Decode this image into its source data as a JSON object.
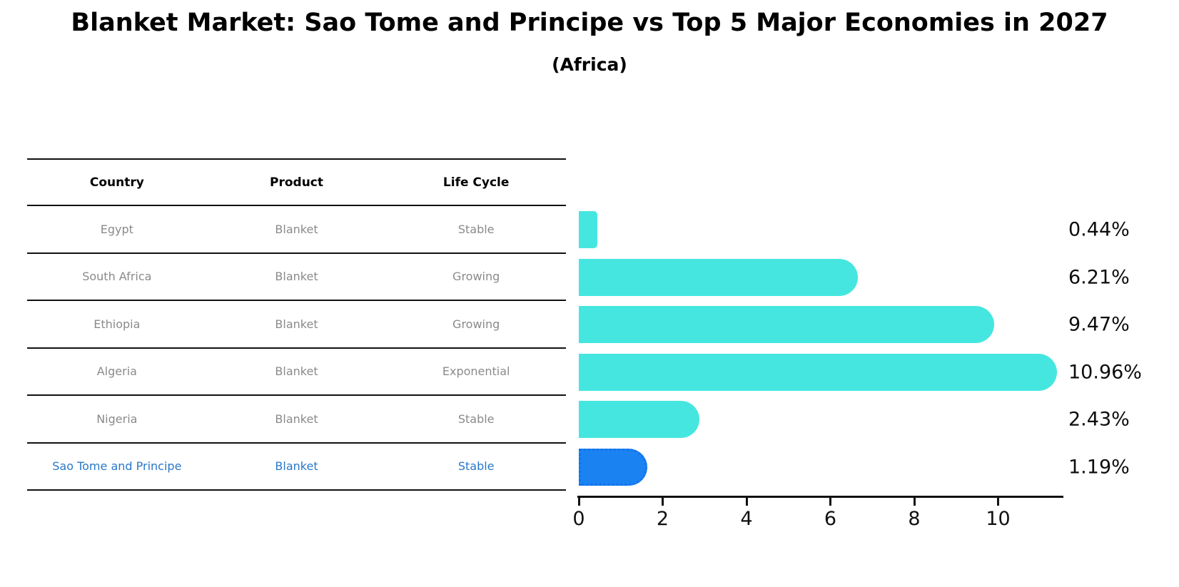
{
  "header": {
    "title": "Blanket Market: Sao Tome and Principe vs Top 5 Major Economies in 2027",
    "subtitle": "(Africa)"
  },
  "table": {
    "columns": [
      "Country",
      "Product",
      "Life Cycle"
    ]
  },
  "chart_data": {
    "type": "bar",
    "orientation": "horizontal",
    "title": "Blanket Market: Sao Tome and Principe vs Top 5 Major Economies in 2027",
    "subtitle": "(Africa)",
    "xlabel": "",
    "ylabel": "",
    "xlim": [
      0,
      11.56
    ],
    "x_ticks": [
      0,
      2,
      4,
      6,
      8,
      10
    ],
    "grid": false,
    "legend": false,
    "categories": [
      "Egypt",
      "South Africa",
      "Ethiopia",
      "Algeria",
      "Nigeria",
      "Sao Tome and Principe"
    ],
    "values": [
      0.44,
      6.21,
      9.47,
      10.96,
      2.43,
      1.19
    ],
    "rows": [
      {
        "country": "Egypt",
        "product": "Blanket",
        "life_cycle": "Stable",
        "value": 0.44,
        "value_label": "0.44%",
        "highlight": false
      },
      {
        "country": "South Africa",
        "product": "Blanket",
        "life_cycle": "Growing",
        "value": 6.21,
        "value_label": "6.21%",
        "highlight": false
      },
      {
        "country": "Ethiopia",
        "product": "Blanket",
        "life_cycle": "Growing",
        "value": 9.47,
        "value_label": "9.47%",
        "highlight": false
      },
      {
        "country": "Algeria",
        "product": "Blanket",
        "life_cycle": "Exponential",
        "value": 10.96,
        "value_label": "10.96%",
        "highlight": false
      },
      {
        "country": "Nigeria",
        "product": "Blanket",
        "life_cycle": "Stable",
        "value": 2.43,
        "value_label": "2.43%",
        "highlight": false
      },
      {
        "country": "Sao Tome and Principe",
        "product": "Blanket",
        "life_cycle": "Stable",
        "value": 1.19,
        "value_label": "1.19%",
        "highlight": true
      }
    ],
    "colors": {
      "bar": "#45E6E0",
      "highlight_bar": "#1B82F2",
      "highlight_text": "#2878C8",
      "axis": "#111111",
      "muted_text": "#8A8A8A"
    }
  }
}
